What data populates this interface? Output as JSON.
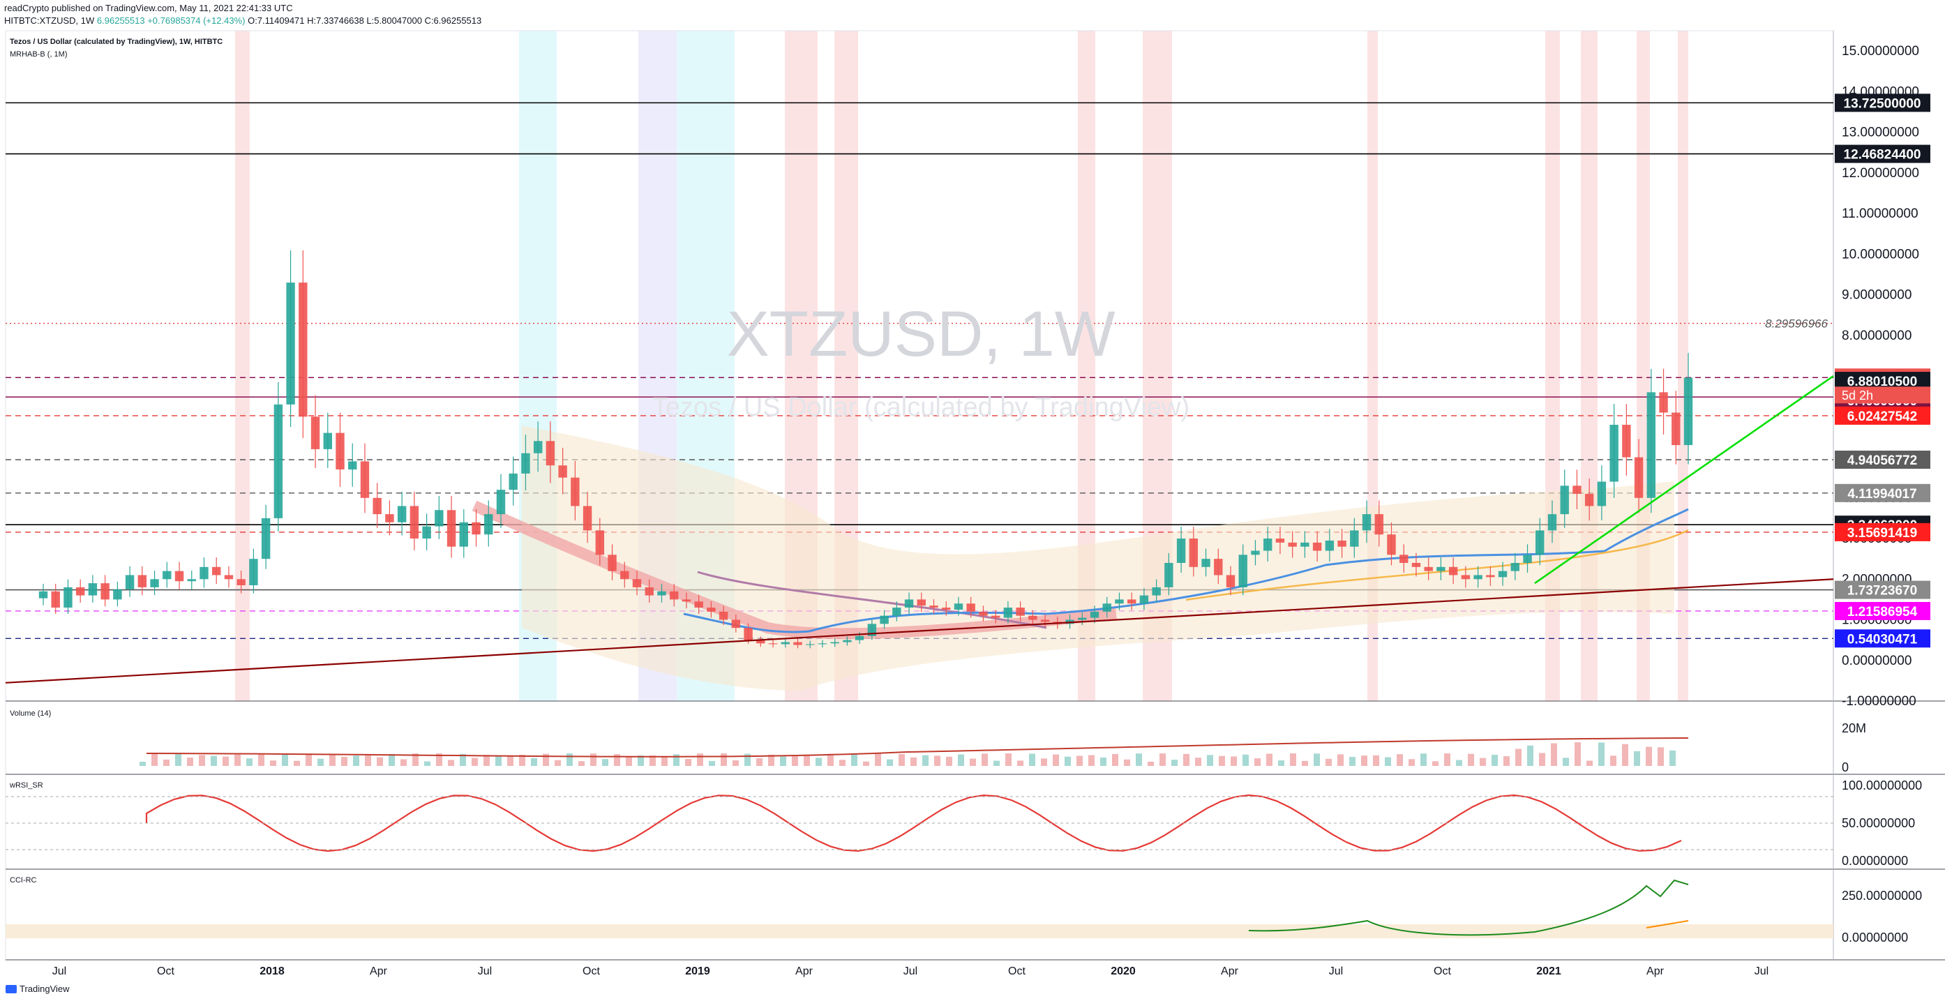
{
  "header": {
    "line1": "readCrypto published on TradingView.com, May 11, 2021 22:41:33 UTC",
    "symbol": "HITBTC:XTZUSD, 1W",
    "last": "6.96255513",
    "change": "+0.76985374 (+12.43%)",
    "ohlc": "O:7.11409471 H:7.33746638 L:5.80047000 C:6.96255513"
  },
  "legend": {
    "title": "Tezos / US Dollar (calculated by TradingView), 1W, HITBTC",
    "indicator": "MRHAB-B (, 1M)"
  },
  "watermark": {
    "symbol": "XTZUSD, 1W",
    "name": "Tezos / US Dollar (calculated by TradingView)"
  },
  "panes": {
    "volume": "Volume (14)",
    "wrsi": "wRSI_SR",
    "cci": "CCI-RC"
  },
  "footer": {
    "brand": "TradingView"
  },
  "colors": {
    "up": "#26a69a",
    "down": "#ef5350",
    "fib": "#c7c7c7",
    "trend_dark": "#8b0000",
    "trend_green": "#00e000"
  },
  "chart_data": {
    "type": "candlestick",
    "title": "Tezos / US Dollar (calculated by TradingView), 1W, HITBTC",
    "x_ticks": [
      "Jul",
      "Oct",
      "2018",
      "Apr",
      "Jul",
      "Oct",
      "2019",
      "Apr",
      "Jul",
      "Oct",
      "2020",
      "Apr",
      "Jul",
      "Oct",
      "2021",
      "Apr",
      "Jul"
    ],
    "y_ticks": [
      "15.00000000",
      "14.00000000",
      "13.00000000",
      "12.00000000",
      "11.00000000",
      "10.00000000",
      "9.00000000",
      "8.00000000",
      "7.00000000",
      "6.00000000",
      "5.00000000",
      "4.00000000",
      "3.00000000",
      "2.00000000",
      "1.00000000",
      "0.00000000",
      "-1.00000000"
    ],
    "ylim": [
      -1,
      15.5
    ],
    "horizontal_levels": [
      {
        "value": 13.725,
        "label": "13.72500000",
        "style": "solid",
        "color": "#000000",
        "badge": "#131722"
      },
      {
        "value": 12.468244,
        "label": "12.46824400",
        "style": "solid",
        "color": "#000000",
        "badge": "#131722"
      },
      {
        "value": 8.29596966,
        "label": "8.29596966",
        "style": "dotted",
        "color": "#e53935",
        "badge": ""
      },
      {
        "value": 6.96255513,
        "label": "6.96255513",
        "style": "dashed",
        "color": "#880e4f",
        "badge": "#ef5350"
      },
      {
        "value": 6.4839896,
        "label": "",
        "style": "solid",
        "color": "#880e4f",
        "badge": ""
      },
      {
        "value": 6.880105,
        "label": "6.88010500",
        "style": "none",
        "color": "#000000",
        "badge": "#131722"
      },
      {
        "value": 6.4039896,
        "label": "6.40398960",
        "style": "none",
        "color": "#000000",
        "badge": "#7b1340"
      },
      {
        "value": 6.02427542,
        "label": "6.02427542",
        "style": "dashed",
        "color": "#e53935",
        "badge": "#ff1f1f"
      },
      {
        "value": 4.94056772,
        "label": "4.94056772",
        "style": "dashed",
        "color": "#555555",
        "badge": "#5d5d5d"
      },
      {
        "value": 4.11994017,
        "label": "4.11994017",
        "style": "dashed",
        "color": "#555555",
        "badge": "#8a8a8a"
      },
      {
        "value": 3.34063,
        "label": "3.34063000",
        "style": "solid",
        "color": "#000000",
        "badge": "#131722"
      },
      {
        "value": 3.15691419,
        "label": "3.15691419",
        "style": "dashed",
        "color": "#e53935",
        "badge": "#ff1f1f"
      },
      {
        "value": 1.7372367,
        "label": "1.73723670",
        "style": "solid",
        "color": "#555555",
        "badge": "#8a8a8a"
      },
      {
        "value": 1.21586954,
        "label": "1.21586954",
        "style": "dashed",
        "color": "#e040fb",
        "badge": "#ff00ff"
      },
      {
        "value": 0.54030471,
        "label": "0.54030471",
        "style": "dashed",
        "color": "#1a237e",
        "badge": "#1a1aff"
      }
    ],
    "countdown": "5d 2h",
    "price_series": [
      1.7,
      1.3,
      1.8,
      1.6,
      1.9,
      1.5,
      1.75,
      2.1,
      1.8,
      2.0,
      2.2,
      1.95,
      2.0,
      2.3,
      2.1,
      2.0,
      1.85,
      2.5,
      3.5,
      6.3,
      9.3,
      6.0,
      5.2,
      5.6,
      4.7,
      4.9,
      4.0,
      3.6,
      3.4,
      3.8,
      3.0,
      3.3,
      3.7,
      2.8,
      3.4,
      3.1,
      3.6,
      4.2,
      4.6,
      5.1,
      5.4,
      4.8,
      4.5,
      3.8,
      3.2,
      2.6,
      2.2,
      2.0,
      1.8,
      1.6,
      1.7,
      1.5,
      1.45,
      1.3,
      1.2,
      1.0,
      0.8,
      0.5,
      0.42,
      0.4,
      0.45,
      0.38,
      0.4,
      0.42,
      0.45,
      0.5,
      0.6,
      0.9,
      1.1,
      1.3,
      1.5,
      1.35,
      1.3,
      1.25,
      1.4,
      1.2,
      1.1,
      1.05,
      1.3,
      1.1,
      1.0,
      0.95,
      0.9,
      1.0,
      1.05,
      1.2,
      1.4,
      1.5,
      1.4,
      1.6,
      1.8,
      2.4,
      3.0,
      2.3,
      2.5,
      2.1,
      1.8,
      2.6,
      2.7,
      3.0,
      2.9,
      2.8,
      2.9,
      2.7,
      2.95,
      2.8,
      3.2,
      3.6,
      3.1,
      2.6,
      2.4,
      2.3,
      2.2,
      2.3,
      2.1,
      2.0,
      2.1,
      2.05,
      2.2,
      2.4,
      2.6,
      3.2,
      3.6,
      4.3,
      4.1,
      3.8,
      4.4,
      5.8,
      5.0,
      4.0,
      6.6,
      6.1,
      5.3,
      6.96
    ],
    "trendlines": [
      {
        "name": "long-term support",
        "from": [
          "Jul 2017",
          -0.5
        ],
        "to": [
          "Jul 2021",
          2.1
        ],
        "color": "#8b0000"
      },
      {
        "name": "rising support",
        "from": [
          "Jan 2021",
          1.9
        ],
        "to": [
          "Jul 2021",
          6.9
        ],
        "color": "#00e000"
      }
    ],
    "volume": {
      "label": "Volume (14)",
      "y_ticks": [
        "20M",
        "0"
      ]
    },
    "wrsi": {
      "label": "wRSI_SR",
      "y_ticks": [
        "100.00000000",
        "50.00000000",
        "0.00000000"
      ]
    },
    "cci": {
      "label": "CCI-RC",
      "y_ticks": [
        "250.00000000",
        "0.00000000"
      ]
    }
  }
}
